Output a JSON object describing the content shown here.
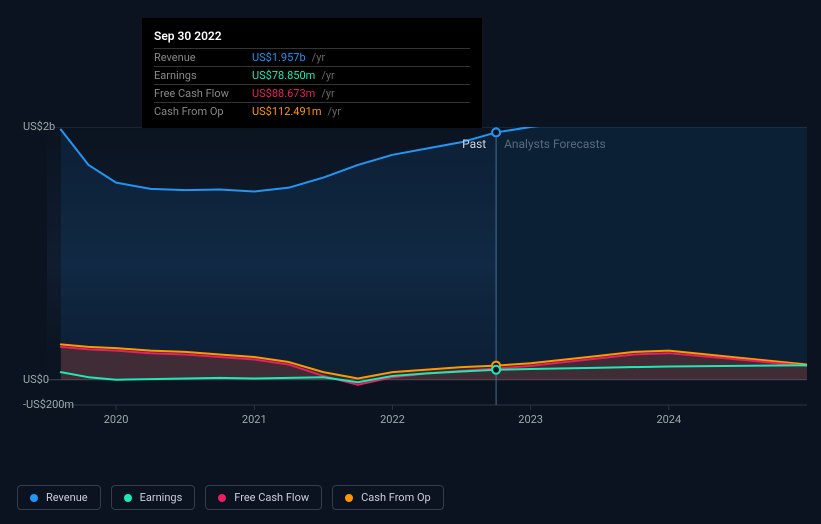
{
  "tooltip": {
    "date": "Sep 30 2022",
    "rows": [
      {
        "label": "Revenue",
        "value": "US$1.957b",
        "unit": "/yr",
        "color": "#2196f3"
      },
      {
        "label": "Earnings",
        "value": "US$78.850m",
        "unit": "/yr",
        "color": "#1de9b6"
      },
      {
        "label": "Free Cash Flow",
        "value": "US$88.673m",
        "unit": "/yr",
        "color": "#e91e63"
      },
      {
        "label": "Cash From Op",
        "value": "US$112.491m",
        "unit": "/yr",
        "color": "#ff9800"
      }
    ]
  },
  "chart": {
    "type": "line-area",
    "background_color": "#0b1320",
    "grid_color": "#2a3444",
    "zero_color": "#3a4454",
    "cursor_x": 480,
    "ylim": [
      -200,
      2000
    ],
    "y_ticks": [
      {
        "v": 2000,
        "label": "US$2b"
      },
      {
        "v": 0,
        "label": "US$0"
      },
      {
        "v": -200,
        "label": "-US$200m"
      }
    ],
    "x_min": 2019.5,
    "x_max": 2025.0,
    "x_ticks": [
      {
        "v": 2020,
        "label": "2020"
      },
      {
        "v": 2021,
        "label": "2021"
      },
      {
        "v": 2022,
        "label": "2022"
      },
      {
        "v": 2023,
        "label": "2023"
      },
      {
        "v": 2024,
        "label": "2024"
      }
    ],
    "sections": {
      "past": {
        "label": "Past",
        "color": "#ccd4e0",
        "end_x": 2022.75
      },
      "forecast": {
        "label": "Analysts Forecasts",
        "color": "#5a6a7a",
        "start_x": 2022.75
      }
    },
    "series": [
      {
        "name": "Revenue",
        "color": "#2196f3",
        "fill_opacity": 0.1,
        "width": 2,
        "points": [
          [
            2019.6,
            1980
          ],
          [
            2019.8,
            1700
          ],
          [
            2020.0,
            1560
          ],
          [
            2020.25,
            1510
          ],
          [
            2020.5,
            1500
          ],
          [
            2020.75,
            1505
          ],
          [
            2021.0,
            1490
          ],
          [
            2021.25,
            1520
          ],
          [
            2021.5,
            1600
          ],
          [
            2021.75,
            1700
          ],
          [
            2022.0,
            1780
          ],
          [
            2022.25,
            1830
          ],
          [
            2022.5,
            1880
          ],
          [
            2022.75,
            1957
          ],
          [
            2023.0,
            2000
          ],
          [
            2023.5,
            2060
          ],
          [
            2024.0,
            2120
          ],
          [
            2024.5,
            2200
          ],
          [
            2025.0,
            2260
          ]
        ]
      },
      {
        "name": "Cash From Op",
        "color": "#ff9800",
        "fill_opacity": 0.12,
        "width": 2,
        "points": [
          [
            2019.6,
            280
          ],
          [
            2019.8,
            260
          ],
          [
            2020.0,
            250
          ],
          [
            2020.25,
            230
          ],
          [
            2020.5,
            220
          ],
          [
            2020.75,
            200
          ],
          [
            2021.0,
            180
          ],
          [
            2021.25,
            140
          ],
          [
            2021.5,
            60
          ],
          [
            2021.75,
            10
          ],
          [
            2022.0,
            60
          ],
          [
            2022.25,
            80
          ],
          [
            2022.5,
            100
          ],
          [
            2022.75,
            112
          ],
          [
            2023.0,
            130
          ],
          [
            2023.25,
            160
          ],
          [
            2023.5,
            190
          ],
          [
            2023.75,
            220
          ],
          [
            2024.0,
            230
          ],
          [
            2025.0,
            120
          ]
        ]
      },
      {
        "name": "Free Cash Flow",
        "color": "#e91e63",
        "fill_opacity": 0.12,
        "width": 2,
        "points": [
          [
            2019.6,
            260
          ],
          [
            2019.8,
            240
          ],
          [
            2020.0,
            230
          ],
          [
            2020.25,
            210
          ],
          [
            2020.5,
            200
          ],
          [
            2020.75,
            180
          ],
          [
            2021.0,
            160
          ],
          [
            2021.25,
            120
          ],
          [
            2021.5,
            30
          ],
          [
            2021.75,
            -40
          ],
          [
            2022.0,
            20
          ],
          [
            2022.25,
            50
          ],
          [
            2022.5,
            70
          ],
          [
            2022.75,
            89
          ],
          [
            2023.0,
            110
          ],
          [
            2023.25,
            140
          ],
          [
            2023.5,
            170
          ],
          [
            2023.75,
            200
          ],
          [
            2024.0,
            210
          ],
          [
            2025.0,
            110
          ]
        ]
      },
      {
        "name": "Earnings",
        "color": "#1de9b6",
        "fill_opacity": 0.0,
        "width": 2,
        "points": [
          [
            2019.6,
            60
          ],
          [
            2019.8,
            20
          ],
          [
            2020.0,
            0
          ],
          [
            2020.25,
            5
          ],
          [
            2020.5,
            10
          ],
          [
            2020.75,
            15
          ],
          [
            2021.0,
            10
          ],
          [
            2021.25,
            15
          ],
          [
            2021.5,
            20
          ],
          [
            2021.75,
            -20
          ],
          [
            2022.0,
            30
          ],
          [
            2022.25,
            50
          ],
          [
            2022.5,
            65
          ],
          [
            2022.75,
            79
          ],
          [
            2023.0,
            85
          ],
          [
            2023.5,
            95
          ],
          [
            2024.0,
            105
          ],
          [
            2024.5,
            110
          ],
          [
            2025.0,
            115
          ]
        ]
      }
    ],
    "markers": [
      {
        "x": 2022.75,
        "y": 1957,
        "color": "#2196f3"
      },
      {
        "x": 2022.75,
        "y": 89,
        "color": "#e91e63"
      },
      {
        "x": 2022.75,
        "y": 112,
        "color": "#ff9800"
      },
      {
        "x": 2022.75,
        "y": 79,
        "color": "#1de9b6"
      }
    ]
  },
  "legend": [
    {
      "label": "Revenue",
      "color": "#2196f3"
    },
    {
      "label": "Earnings",
      "color": "#1de9b6"
    },
    {
      "label": "Free Cash Flow",
      "color": "#e91e63"
    },
    {
      "label": "Cash From Op",
      "color": "#ff9800"
    }
  ]
}
